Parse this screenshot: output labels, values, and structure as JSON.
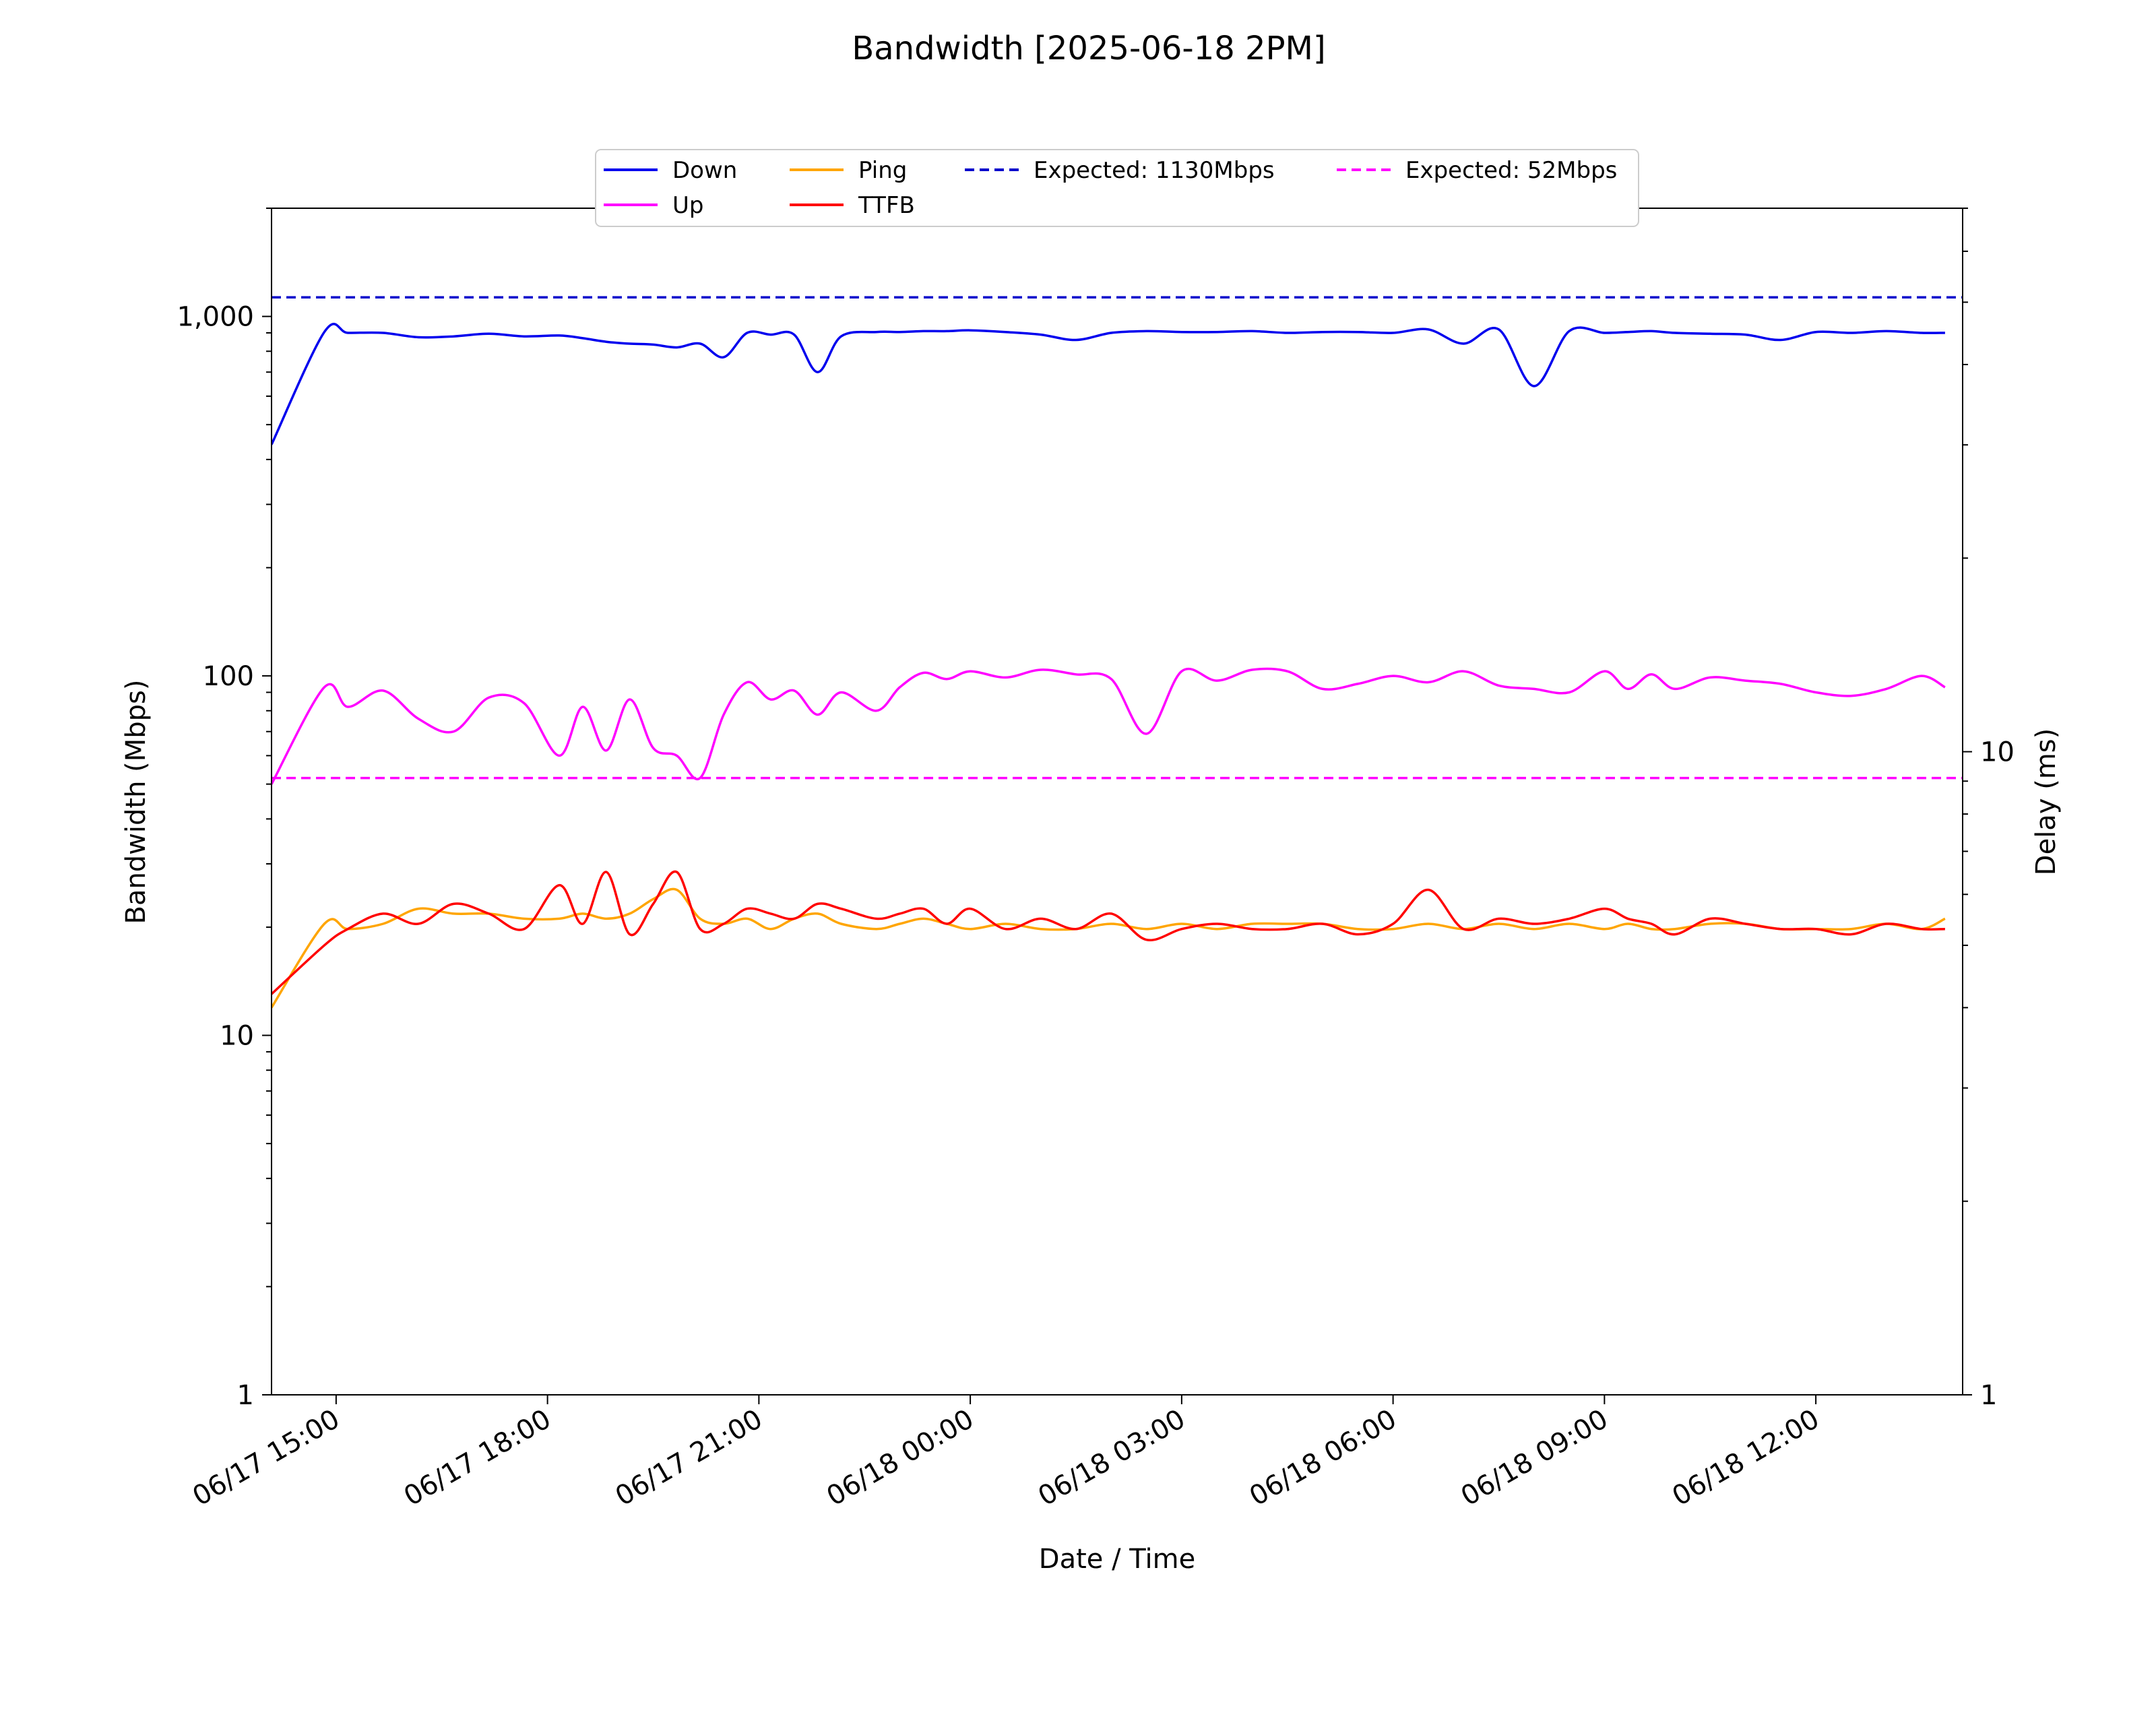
{
  "chart_data": {
    "type": "line",
    "title": "Bandwidth [2025-06-18 2PM]",
    "xlabel": "Date / Time",
    "ylabel_left": "Bandwidth (Mbps)",
    "ylabel_right": "Delay (ms)",
    "y_scale": "log",
    "ylim_left": [
      1,
      2000
    ],
    "ylim_right": [
      1,
      70
    ],
    "left_tick_labels": [
      {
        "value": 1,
        "label": "1"
      },
      {
        "value": 10,
        "label": "10"
      },
      {
        "value": 100,
        "label": "100"
      },
      {
        "value": 1000,
        "label": "1,000"
      }
    ],
    "right_tick_labels": [
      {
        "value": 1,
        "label": "1"
      },
      {
        "value": 10,
        "label": "10"
      }
    ],
    "x_ticks": [
      {
        "t": "2025-06-17 15:00",
        "label": "06/17 15:00"
      },
      {
        "t": "2025-06-17 18:00",
        "label": "06/17 18:00"
      },
      {
        "t": "2025-06-17 21:00",
        "label": "06/17 21:00"
      },
      {
        "t": "2025-06-18 00:00",
        "label": "06/18 00:00"
      },
      {
        "t": "2025-06-18 03:00",
        "label": "06/18 03:00"
      },
      {
        "t": "2025-06-18 06:00",
        "label": "06/18 06:00"
      },
      {
        "t": "2025-06-18 09:00",
        "label": "06/18 09:00"
      },
      {
        "t": "2025-06-18 12:00",
        "label": "06/18 12:00"
      }
    ],
    "x_range": [
      "2025-06-17 14:05",
      "2025-06-18 14:05"
    ],
    "legend_position": "top-center",
    "grid": false,
    "x": [
      "2025-06-17 14:05",
      "2025-06-17 14:50",
      "2025-06-17 15:10",
      "2025-06-17 15:40",
      "2025-06-17 16:10",
      "2025-06-17 16:40",
      "2025-06-17 17:10",
      "2025-06-17 17:40",
      "2025-06-17 18:10",
      "2025-06-17 18:30",
      "2025-06-17 18:50",
      "2025-06-17 19:10",
      "2025-06-17 19:30",
      "2025-06-17 19:50",
      "2025-06-17 20:10",
      "2025-06-17 20:30",
      "2025-06-17 20:50",
      "2025-06-17 21:10",
      "2025-06-17 21:30",
      "2025-06-17 21:50",
      "2025-06-17 22:10",
      "2025-06-17 22:40",
      "2025-06-17 23:00",
      "2025-06-17 23:20",
      "2025-06-17 23:40",
      "2025-06-18 00:00",
      "2025-06-18 00:30",
      "2025-06-18 01:00",
      "2025-06-18 01:30",
      "2025-06-18 02:00",
      "2025-06-18 02:30",
      "2025-06-18 03:00",
      "2025-06-18 03:30",
      "2025-06-18 04:00",
      "2025-06-18 04:30",
      "2025-06-18 05:00",
      "2025-06-18 05:30",
      "2025-06-18 06:00",
      "2025-06-18 06:30",
      "2025-06-18 07:00",
      "2025-06-18 07:30",
      "2025-06-18 08:00",
      "2025-06-18 08:30",
      "2025-06-18 09:00",
      "2025-06-18 09:20",
      "2025-06-18 09:40",
      "2025-06-18 10:00",
      "2025-06-18 10:30",
      "2025-06-18 11:00",
      "2025-06-18 11:30",
      "2025-06-18 12:00",
      "2025-06-18 12:30",
      "2025-06-18 13:00",
      "2025-06-18 13:30",
      "2025-06-18 13:50"
    ],
    "series": [
      {
        "name": "Down",
        "axis": "left",
        "color": "#0000ee",
        "values": [
          440,
          905,
          900,
          900,
          875,
          880,
          895,
          880,
          885,
          870,
          850,
          840,
          835,
          820,
          840,
          770,
          900,
          890,
          890,
          700,
          880,
          905,
          905,
          910,
          910,
          915,
          905,
          890,
          860,
          900,
          910,
          905,
          905,
          910,
          900,
          905,
          905,
          900,
          920,
          840,
          920,
          640,
          910,
          900,
          905,
          910,
          900,
          895,
          890,
          860,
          905,
          900,
          910,
          900,
          900
        ]
      },
      {
        "name": "Up",
        "axis": "left",
        "color": "#ff00ff",
        "values": [
          50,
          93,
          82,
          91,
          76,
          70,
          87,
          84,
          60,
          82,
          62,
          86,
          63,
          60,
          52,
          78,
          96,
          86,
          91,
          78,
          90,
          80,
          93,
          102,
          98,
          103,
          99,
          104,
          101,
          98,
          69,
          103,
          97,
          104,
          103,
          92,
          95,
          100,
          96,
          103,
          94,
          92,
          90,
          103,
          92,
          101,
          92,
          99,
          97,
          95,
          90,
          88,
          92,
          100,
          93
        ]
      },
      {
        "name": "Ping",
        "axis": "right",
        "color": "#ffa500",
        "values": [
          4.0,
          5.4,
          5.3,
          5.4,
          5.7,
          5.6,
          5.6,
          5.5,
          5.5,
          5.6,
          5.5,
          5.6,
          5.9,
          6.1,
          5.5,
          5.4,
          5.5,
          5.3,
          5.5,
          5.6,
          5.4,
          5.3,
          5.4,
          5.5,
          5.4,
          5.3,
          5.4,
          5.3,
          5.3,
          5.4,
          5.3,
          5.4,
          5.3,
          5.4,
          5.4,
          5.4,
          5.3,
          5.3,
          5.4,
          5.3,
          5.4,
          5.3,
          5.4,
          5.3,
          5.4,
          5.3,
          5.3,
          5.4,
          5.4,
          5.3,
          5.3,
          5.3,
          5.4,
          5.3,
          5.5
        ]
      },
      {
        "name": "TTFB",
        "axis": "right",
        "color": "#ff0000",
        "values": [
          4.2,
          5.0,
          5.3,
          5.6,
          5.4,
          5.8,
          5.6,
          5.3,
          6.2,
          5.4,
          6.5,
          5.2,
          5.8,
          6.5,
          5.3,
          5.4,
          5.7,
          5.6,
          5.5,
          5.8,
          5.7,
          5.5,
          5.6,
          5.7,
          5.4,
          5.7,
          5.3,
          5.5,
          5.3,
          5.6,
          5.1,
          5.3,
          5.4,
          5.3,
          5.3,
          5.4,
          5.2,
          5.4,
          6.1,
          5.3,
          5.5,
          5.4,
          5.5,
          5.7,
          5.5,
          5.4,
          5.2,
          5.5,
          5.4,
          5.3,
          5.3,
          5.2,
          5.4,
          5.3,
          5.3
        ]
      }
    ],
    "reference_lines": [
      {
        "name": "Expected: 1130Mbps",
        "axis": "left",
        "value": 1130,
        "color": "#0000cc",
        "style": "dashed"
      },
      {
        "name": "Expected: 52Mbps",
        "axis": "left",
        "value": 52,
        "color": "#ff00ff",
        "style": "dashed"
      }
    ]
  }
}
